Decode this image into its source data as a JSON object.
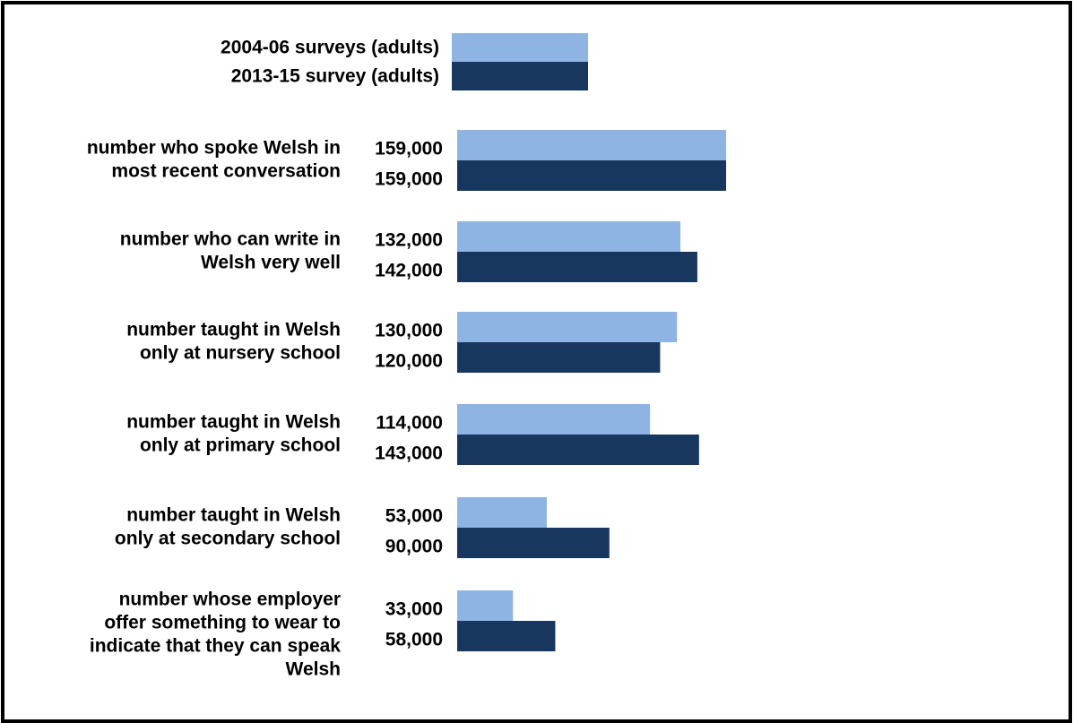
{
  "chart_data": {
    "type": "bar",
    "orientation": "horizontal",
    "categories": [
      [
        "number who spoke Welsh in",
        "most recent conversation"
      ],
      [
        "number who can write in",
        "Welsh very well"
      ],
      [
        "number taught in Welsh",
        "only at nursery school"
      ],
      [
        "number taught in Welsh",
        "only at primary school"
      ],
      [
        "number taught in Welsh",
        "only at secondary school"
      ],
      [
        "number whose employer",
        "offer something to wear to",
        "indicate that they can speak",
        "Welsh"
      ]
    ],
    "series": [
      {
        "name": "2004-06 surveys (adults)",
        "color": "#8eb4e3",
        "values": [
          159000,
          132000,
          130000,
          114000,
          53000,
          33000
        ],
        "labels": [
          "159,000",
          "132,000",
          "130,000",
          "114,000",
          "53,000",
          "33,000"
        ]
      },
      {
        "name": "2013-15 survey (adults)",
        "color": "#17375e",
        "values": [
          159000,
          142000,
          120000,
          143000,
          90000,
          58000
        ],
        "labels": [
          "159,000",
          "142,000",
          "120,000",
          "143,000",
          "90,000",
          "58,000"
        ]
      }
    ],
    "legend": "top",
    "grid": false,
    "axes_visible": false,
    "xlim": [
      0,
      159000
    ]
  }
}
